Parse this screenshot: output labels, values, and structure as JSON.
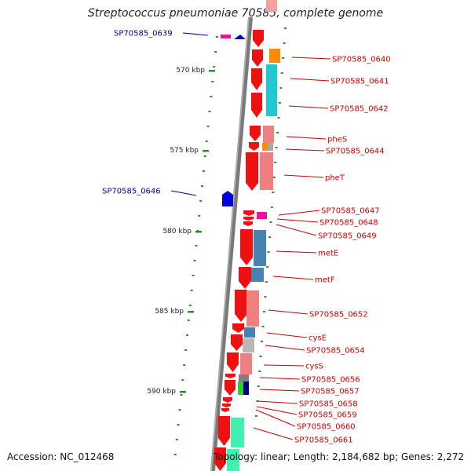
{
  "title": "Streptococcus pneumoniae 70585, complete genome",
  "accession": "Accession: NC_012468",
  "topology": "Topology: linear; Length: 2,184,682 bp; Genes: 2,272",
  "colors": {
    "backbone": "#7a7a7a",
    "tick": "#2e8b2e",
    "forward_label": "#cc0000",
    "reverse_label": "#000099",
    "cds_forward": "#ee1111"
  },
  "ticks": [
    {
      "label": "570 kbp"
    },
    {
      "label": "575 kbp"
    },
    {
      "label": "580 kbp"
    },
    {
      "label": "585 kbp"
    },
    {
      "label": "590 kbp"
    }
  ],
  "genes": [
    {
      "name": "SP70585_0639",
      "strand": "reverse"
    },
    {
      "name": "SP70585_0640",
      "strand": "forward"
    },
    {
      "name": "SP70585_0641",
      "strand": "forward"
    },
    {
      "name": "SP70585_0642",
      "strand": "forward"
    },
    {
      "name": "pheS",
      "strand": "forward"
    },
    {
      "name": "SP70585_0644",
      "strand": "forward"
    },
    {
      "name": "pheT",
      "strand": "forward"
    },
    {
      "name": "SP70585_0646",
      "strand": "reverse"
    },
    {
      "name": "SP70585_0647",
      "strand": "forward"
    },
    {
      "name": "SP70585_0648",
      "strand": "forward"
    },
    {
      "name": "SP70585_0649",
      "strand": "forward"
    },
    {
      "name": "metE",
      "strand": "forward"
    },
    {
      "name": "metF",
      "strand": "forward"
    },
    {
      "name": "SP70585_0652",
      "strand": "forward"
    },
    {
      "name": "cysE",
      "strand": "forward"
    },
    {
      "name": "SP70585_0654",
      "strand": "forward"
    },
    {
      "name": "cysS",
      "strand": "forward"
    },
    {
      "name": "SP70585_0656",
      "strand": "forward"
    },
    {
      "name": "SP70585_0657",
      "strand": "forward"
    },
    {
      "name": "SP70585_0658",
      "strand": "forward"
    },
    {
      "name": "SP70585_0659",
      "strand": "forward"
    },
    {
      "name": "SP70585_0660",
      "strand": "forward"
    },
    {
      "name": "SP70585_0661",
      "strand": "forward"
    }
  ]
}
